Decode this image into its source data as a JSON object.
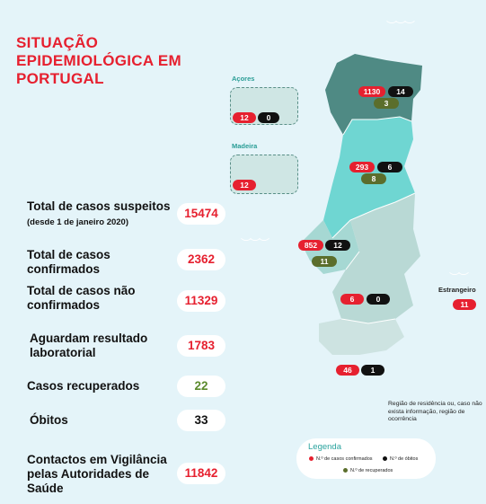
{
  "title": "SITUAÇÃO EPIDEMIOLÓGICA EM PORTUGAL",
  "stats": [
    {
      "label": "Total de casos suspeitos",
      "label_small": "(desde 1 de janeiro 2020)",
      "value": "15474"
    },
    {
      "label": "Total de casos confirmados",
      "value": "2362"
    },
    {
      "label": "Total de casos não confirmados",
      "value": "11329"
    },
    {
      "label": "Aguardam resultado laboratorial",
      "value": "1783"
    },
    {
      "label": "Casos recuperados",
      "value": "22"
    },
    {
      "label": "Óbitos",
      "value": "33"
    },
    {
      "label": "Contactos em Vigilância pelas Autoridades de Saúde",
      "value": "11842"
    }
  ],
  "regions": {
    "acores": {
      "label": "Açores",
      "confirmed": "12",
      "deaths": "0"
    },
    "madeira": {
      "label": "Madeira",
      "confirmed": "12"
    },
    "norte": {
      "confirmed": "1130",
      "deaths": "14",
      "recovered": "3"
    },
    "centro": {
      "confirmed": "293",
      "deaths": "6",
      "recovered": "8"
    },
    "lisboa": {
      "confirmed": "852",
      "deaths": "12",
      "recovered": "11"
    },
    "alentejo": {
      "confirmed": "6",
      "deaths": "0"
    },
    "algarve": {
      "confirmed": "46",
      "deaths": "1"
    },
    "estrangeiro": {
      "label": "Estrangeiro",
      "confirmed": "11"
    }
  },
  "note": "Região de residência ou, caso não exista informação, região de ocorrência",
  "legend": {
    "title": "Legenda",
    "confirmed": "N.º de casos confirmados",
    "deaths": "N.º de óbitos",
    "recovered": "N.º de recuperados"
  },
  "colors": {
    "red": "#e6202f",
    "black": "#111111",
    "olive": "#5b6e2c",
    "norte": "#4f8a84",
    "centro": "#6fd6d2",
    "lisboa": "#a6d8d3",
    "alentejo": "#b9d9d5",
    "algarve": "#cde3e1"
  }
}
